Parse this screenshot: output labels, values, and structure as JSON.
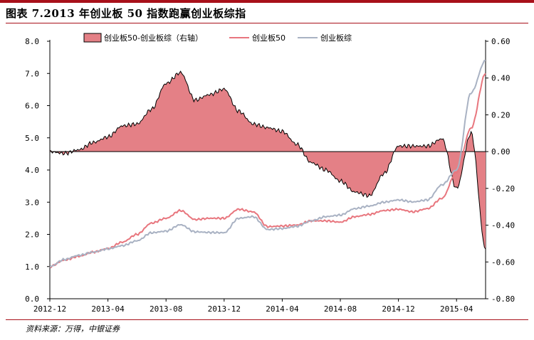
{
  "title": "图表 7.2013 年创业板 50 指数跑赢创业板综指",
  "source": "资料来源：万得，中银证券",
  "colors": {
    "spread_fill": "#e48086",
    "spread_stroke": "#000000",
    "cyb50": "#e8767e",
    "cybz": "#a9b2c3",
    "brand": "#a8101a"
  },
  "chart_data": {
    "type": "line",
    "legend_position": "top",
    "grid": false,
    "x_tick_labels": [
      "2012-12",
      "2013-04",
      "2013-08",
      "2013-12",
      "2014-04",
      "2014-08",
      "2014-12",
      "2015-04"
    ],
    "ylim": [
      0,
      8
    ],
    "y_ticks": [
      "0.0",
      "1.0",
      "2.0",
      "3.0",
      "4.0",
      "5.0",
      "6.0",
      "7.0",
      "8.0"
    ],
    "y2lim": [
      -0.8,
      0.6
    ],
    "y2_ticks": [
      "-0.80",
      "-0.60",
      "-0.40",
      "-0.20",
      "0.00",
      "0.20",
      "0.40",
      "0.60"
    ],
    "x": [
      "2012-12",
      "2013-01",
      "2013-02",
      "2013-03",
      "2013-04",
      "2013-05",
      "2013-06",
      "2013-07",
      "2013-08",
      "2013-09",
      "2013-10",
      "2013-11",
      "2013-12",
      "2014-01",
      "2014-02",
      "2014-03",
      "2014-04",
      "2014-05",
      "2014-06",
      "2014-07",
      "2014-08",
      "2014-09",
      "2014-10",
      "2014-11",
      "2014-12",
      "2015-01",
      "2015-02",
      "2015-03",
      "2015-04",
      "2015-05",
      "2015-06"
    ],
    "series": [
      {
        "name": "创业板50-创业板综（右轴）",
        "axis": "right",
        "type": "area",
        "values": [
          0.0,
          -0.01,
          0.01,
          0.05,
          0.08,
          0.14,
          0.15,
          0.23,
          0.37,
          0.43,
          0.28,
          0.31,
          0.34,
          0.22,
          0.15,
          0.13,
          0.11,
          0.04,
          -0.06,
          -0.1,
          -0.16,
          -0.22,
          -0.24,
          -0.12,
          0.03,
          0.03,
          0.03,
          0.07,
          -0.2,
          0.1,
          -0.53
        ]
      },
      {
        "name": "创业板50",
        "axis": "left",
        "type": "line",
        "values": [
          1.0,
          1.2,
          1.32,
          1.45,
          1.56,
          1.76,
          2.0,
          2.35,
          2.5,
          2.74,
          2.46,
          2.5,
          2.5,
          2.78,
          2.7,
          2.24,
          2.26,
          2.29,
          2.42,
          2.42,
          2.38,
          2.55,
          2.62,
          2.74,
          2.78,
          2.7,
          2.8,
          3.12,
          3.93,
          5.3,
          7.0
        ]
      },
      {
        "name": "创业板综",
        "axis": "left",
        "type": "line",
        "values": [
          1.0,
          1.22,
          1.35,
          1.45,
          1.55,
          1.65,
          1.8,
          2.05,
          2.1,
          2.3,
          2.08,
          2.06,
          2.05,
          2.5,
          2.55,
          2.15,
          2.18,
          2.25,
          2.42,
          2.55,
          2.6,
          2.8,
          2.88,
          3.0,
          3.07,
          3.01,
          3.07,
          3.54,
          4.0,
          6.4,
          7.4
        ]
      }
    ]
  }
}
